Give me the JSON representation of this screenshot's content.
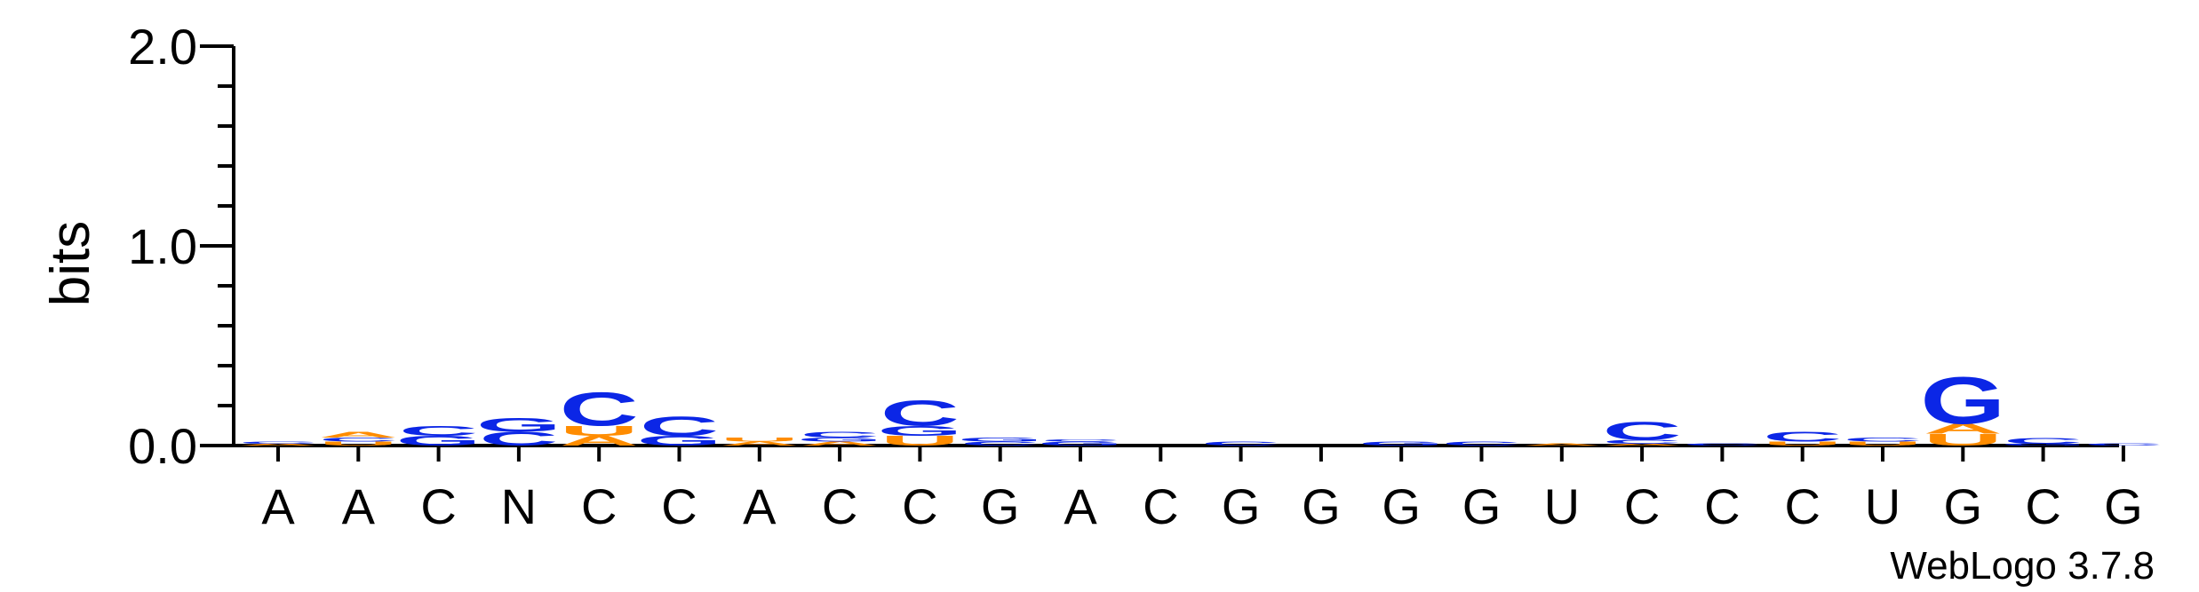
{
  "chart_data": {
    "type": "sequence-logo",
    "ylabel": "bits",
    "ylim": [
      0,
      2
    ],
    "yticks": [
      "0.0",
      "1.0",
      "2.0"
    ],
    "credit": "WebLogo 3.7.8",
    "colors": {
      "C": "#0b26e6",
      "G": "#0b26e6",
      "A": "#ff8c00",
      "U": "#ff8c00"
    },
    "positions": [
      {
        "label": "A",
        "stack": [
          {
            "letter": "A",
            "bits": 0.01
          },
          {
            "letter": "C",
            "bits": 0.01
          }
        ]
      },
      {
        "label": "A",
        "stack": [
          {
            "letter": "U",
            "bits": 0.02
          },
          {
            "letter": "C",
            "bits": 0.02
          },
          {
            "letter": "A",
            "bits": 0.03
          }
        ]
      },
      {
        "label": "C",
        "stack": [
          {
            "letter": "G",
            "bits": 0.05
          },
          {
            "letter": "C",
            "bits": 0.05
          }
        ]
      },
      {
        "label": "N",
        "stack": [
          {
            "letter": "C",
            "bits": 0.07
          },
          {
            "letter": "G",
            "bits": 0.07
          }
        ]
      },
      {
        "label": "C",
        "stack": [
          {
            "letter": "A",
            "bits": 0.05
          },
          {
            "letter": "U",
            "bits": 0.05
          },
          {
            "letter": "C",
            "bits": 0.17
          }
        ]
      },
      {
        "label": "C",
        "stack": [
          {
            "letter": "G",
            "bits": 0.05
          },
          {
            "letter": "C",
            "bits": 0.1
          }
        ]
      },
      {
        "label": "A",
        "stack": [
          {
            "letter": "A",
            "bits": 0.02
          },
          {
            "letter": "U",
            "bits": 0.02
          }
        ]
      },
      {
        "label": "C",
        "stack": [
          {
            "letter": "A",
            "bits": 0.02
          },
          {
            "letter": "G",
            "bits": 0.02
          },
          {
            "letter": "C",
            "bits": 0.03
          }
        ]
      },
      {
        "label": "C",
        "stack": [
          {
            "letter": "U",
            "bits": 0.05
          },
          {
            "letter": "G",
            "bits": 0.05
          },
          {
            "letter": "C",
            "bits": 0.13
          }
        ]
      },
      {
        "label": "G",
        "stack": [
          {
            "letter": "C",
            "bits": 0.02
          },
          {
            "letter": "G",
            "bits": 0.02
          }
        ]
      },
      {
        "label": "A",
        "stack": [
          {
            "letter": "G",
            "bits": 0.02
          },
          {
            "letter": "C",
            "bits": 0.01
          }
        ]
      },
      {
        "label": "C",
        "stack": []
      },
      {
        "label": "G",
        "stack": [
          {
            "letter": "C",
            "bits": 0.02
          }
        ]
      },
      {
        "label": "G",
        "stack": []
      },
      {
        "label": "G",
        "stack": [
          {
            "letter": "G",
            "bits": 0.02
          }
        ]
      },
      {
        "label": "G",
        "stack": [
          {
            "letter": "C",
            "bits": 0.02
          }
        ]
      },
      {
        "label": "U",
        "stack": [
          {
            "letter": "A",
            "bits": 0.01
          }
        ]
      },
      {
        "label": "C",
        "stack": [
          {
            "letter": "A",
            "bits": 0.01
          },
          {
            "letter": "C",
            "bits": 0.02
          },
          {
            "letter": "C",
            "bits": 0.09
          }
        ]
      },
      {
        "label": "C",
        "stack": [
          {
            "letter": "C",
            "bits": 0.01
          }
        ]
      },
      {
        "label": "C",
        "stack": [
          {
            "letter": "U",
            "bits": 0.02
          },
          {
            "letter": "C",
            "bits": 0.05
          }
        ]
      },
      {
        "label": "U",
        "stack": [
          {
            "letter": "U",
            "bits": 0.02
          },
          {
            "letter": "C",
            "bits": 0.02
          }
        ]
      },
      {
        "label": "G",
        "stack": [
          {
            "letter": "U",
            "bits": 0.06
          },
          {
            "letter": "A",
            "bits": 0.05
          },
          {
            "letter": "G",
            "bits": 0.24
          }
        ]
      },
      {
        "label": "C",
        "stack": [
          {
            "letter": "G",
            "bits": 0.01
          },
          {
            "letter": "C",
            "bits": 0.03
          }
        ]
      },
      {
        "label": "G",
        "stack": [
          {
            "letter": "C",
            "bits": 0.01
          }
        ]
      }
    ]
  }
}
